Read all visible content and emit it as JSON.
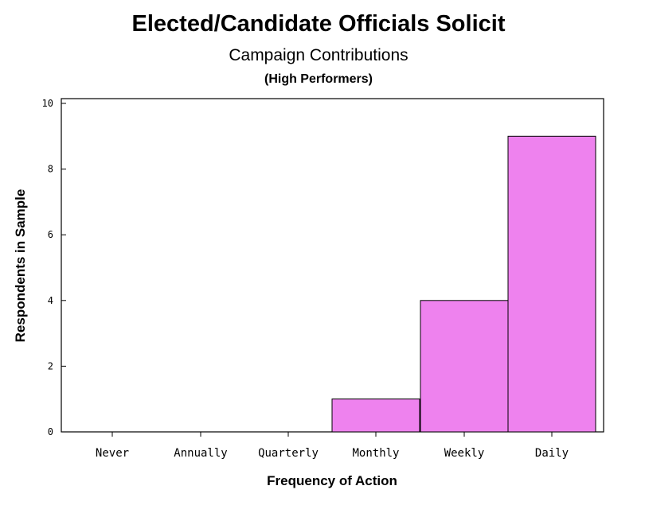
{
  "chart_data": {
    "type": "bar",
    "title": "Elected/Candidate Officials Solicit",
    "subtitle": "Campaign Contributions",
    "subsubtitle": "(High Performers)",
    "xlabel": "Frequency of Action",
    "ylabel": "Respondents in Sample",
    "categories": [
      "Never",
      "Annually",
      "Quarterly",
      "Monthly",
      "Weekly",
      "Daily"
    ],
    "values": [
      0,
      0,
      0,
      1,
      4,
      9
    ],
    "ylim": [
      0,
      10
    ],
    "yticks": [
      "0",
      "2",
      "4",
      "6",
      "8",
      "10"
    ],
    "grid": false,
    "bar_color": "#ee82ee",
    "bar_stroke": "#000000"
  }
}
